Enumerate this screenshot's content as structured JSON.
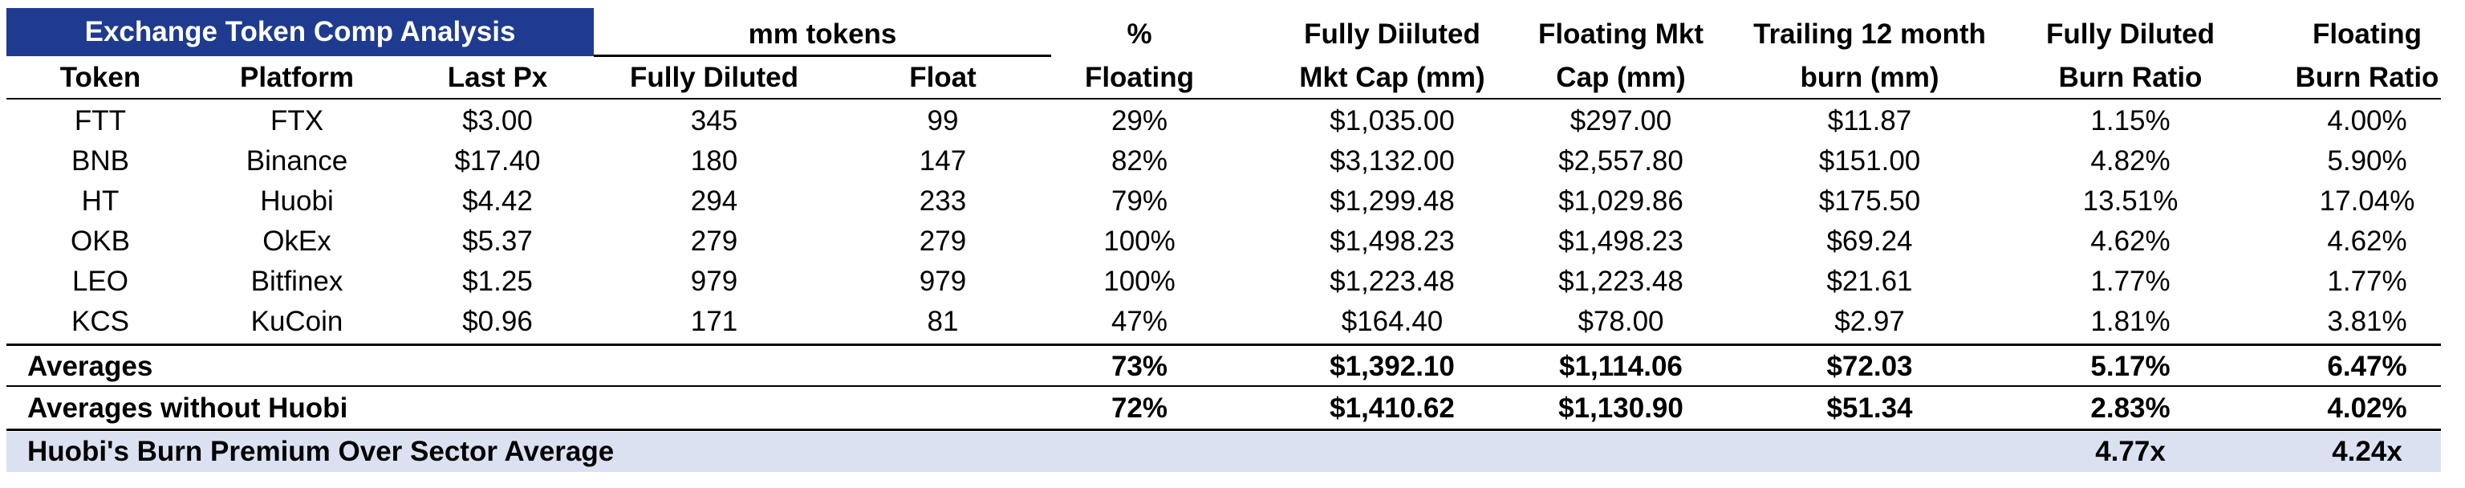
{
  "title": "Exchange Token Comp Analysis",
  "group_header": "mm tokens",
  "headers": {
    "floating_pct": [
      "%",
      "Floating"
    ],
    "fd_mcap": [
      "Fully Diiluted",
      "Mkt Cap (mm)"
    ],
    "float_mcap": [
      "Floating Mkt",
      "Cap (mm)"
    ],
    "burn": [
      "Trailing 12 month",
      "burn (mm)"
    ],
    "fd_ratio": [
      "Fully Diluted",
      "Burn Ratio"
    ],
    "float_ratio": [
      "Floating",
      "Burn Ratio"
    ],
    "token": "Token",
    "platform": "Platform",
    "last_px": "Last Px",
    "fully_diluted": "Fully Diluted",
    "float": "Float"
  },
  "rows": [
    [
      "FTT",
      "FTX",
      "$3.00",
      "345",
      "99",
      "29%",
      "$1,035.00",
      "$297.00",
      "$11.87",
      "1.15%",
      "4.00%"
    ],
    [
      "BNB",
      "Binance",
      "$17.40",
      "180",
      "147",
      "82%",
      "$3,132.00",
      "$2,557.80",
      "$151.00",
      "4.82%",
      "5.90%"
    ],
    [
      "HT",
      "Huobi",
      "$4.42",
      "294",
      "233",
      "79%",
      "$1,299.48",
      "$1,029.86",
      "$175.50",
      "13.51%",
      "17.04%"
    ],
    [
      "OKB",
      "OkEx",
      "$5.37",
      "279",
      "279",
      "100%",
      "$1,498.23",
      "$1,498.23",
      "$69.24",
      "4.62%",
      "4.62%"
    ],
    [
      "LEO",
      "Bitfinex",
      "$1.25",
      "979",
      "979",
      "100%",
      "$1,223.48",
      "$1,223.48",
      "$21.61",
      "1.77%",
      "1.77%"
    ],
    [
      "KCS",
      "KuCoin",
      "$0.96",
      "171",
      "81",
      "47%",
      "$164.40",
      "$78.00",
      "$2.97",
      "1.81%",
      "3.81%"
    ]
  ],
  "averages": {
    "label": "Averages",
    "values": [
      "73%",
      "$1,392.10",
      "$1,114.06",
      "$72.03",
      "5.17%",
      "6.47%"
    ]
  },
  "averages_ex": {
    "label": "Averages without Huobi",
    "values": [
      "72%",
      "$1,410.62",
      "$1,130.90",
      "$51.34",
      "2.83%",
      "4.02%"
    ]
  },
  "premium": {
    "label": "Huobi's Burn Premium Over Sector Average",
    "values": [
      "4.77x",
      "4.24x"
    ]
  }
}
